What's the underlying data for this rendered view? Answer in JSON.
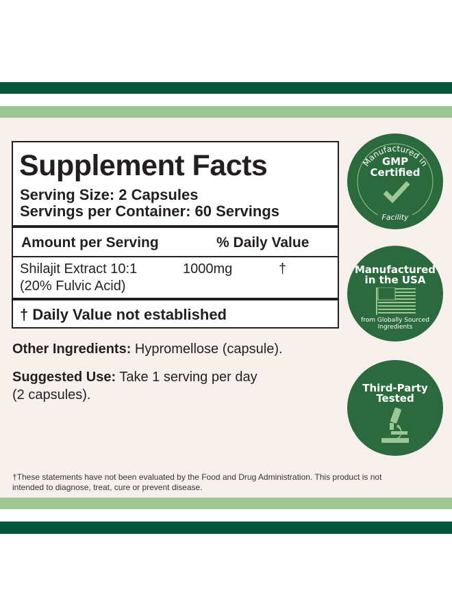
{
  "colors": {
    "dark_green": "#02563a",
    "light_green": "#9dc794",
    "panel": "#f7efeb",
    "badge": "#2a6a3d"
  },
  "facts": {
    "title": "Supplement Facts",
    "serving_size": "Serving Size: 2 Capsules",
    "servings_per_container": "Servings per Container: 60 Servings",
    "col_amount": "Amount per Serving",
    "col_dv": "% Daily Value",
    "ingredient": {
      "name": "Shilajit Extract 10:1",
      "sub": "(20% Fulvic Acid)",
      "amount": "1000mg",
      "dv": "†"
    },
    "footnote": "† Daily Value not established"
  },
  "other": {
    "label": "Other Ingredients:",
    "value": " Hypromellose (capsule)."
  },
  "use": {
    "label": "Suggested Use:",
    "line1": " Take 1 serving per day",
    "line2": "(2 capsules)."
  },
  "disclaimer": {
    "line1": "†These statements have not been evaluated by the Food and Drug Administration. This product is not",
    "line2": "intended to diagnose, treat, cure or prevent disease."
  },
  "badges": {
    "gmp": {
      "top": "Manufactured in",
      "title1": "GMP",
      "title2": "Certified",
      "bottom": "Facility",
      "icon": "checkmark-icon"
    },
    "usa": {
      "title1": "Manufactured",
      "title2": "in the USA",
      "sub1": "from Globally Sourced",
      "sub2": "Ingredients",
      "icon": "us-flag-icon"
    },
    "tested": {
      "title1": "Third-Party",
      "title2": "Tested",
      "icon": "microscope-icon"
    }
  }
}
